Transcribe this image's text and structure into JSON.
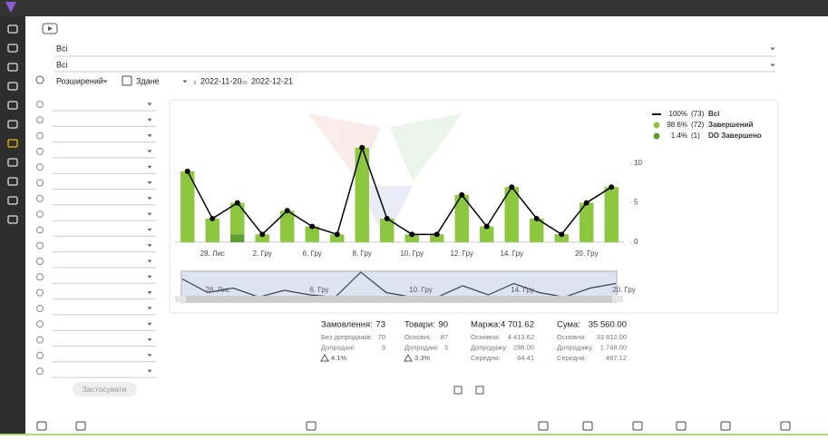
{
  "filters": {
    "row1": "Всі",
    "row2": "Всі",
    "mode": "Розширений",
    "status": "Здане",
    "from_label": "з",
    "from": "2022-11-20",
    "to_label": "по",
    "to": "2022-12-21"
  },
  "chart_data": {
    "type": "bar",
    "categories": [
      null,
      "28. Лис",
      null,
      "2. Гру",
      null,
      "6. Гру",
      null,
      "8. Гру",
      null,
      "10. Гру",
      null,
      "12. Гру",
      null,
      "14. Гру",
      null,
      null,
      "20. Гру",
      null
    ],
    "series": [
      {
        "name": "Всі",
        "type": "line",
        "color": "#000000",
        "percent": "100%",
        "count": "(73)",
        "values": [
          9,
          3,
          5,
          1,
          4,
          2,
          1,
          12,
          3,
          1,
          1,
          6,
          2,
          7,
          3,
          1,
          5,
          7
        ]
      },
      {
        "name": "Завершений",
        "color": "#8dc63f",
        "percent": "98.6%",
        "count": "(72)",
        "values": [
          9,
          3,
          4,
          1,
          4,
          2,
          1,
          12,
          3,
          1,
          1,
          6,
          2,
          7,
          3,
          1,
          5,
          7
        ]
      },
      {
        "name": "DO Завершено",
        "color": "#5e9e30",
        "percent": "1.4%",
        "count": "(1)",
        "values": [
          0,
          0,
          1,
          0,
          0,
          0,
          0,
          0,
          0,
          0,
          0,
          0,
          0,
          0,
          0,
          0,
          0,
          0
        ]
      }
    ],
    "ylim": [
      0,
      16
    ],
    "yticks": [
      0,
      5,
      10
    ],
    "grid": false,
    "navigator_labels": [
      "28. Лис",
      "6. Гру",
      "10. Гру",
      "14. Гру",
      "20. Гру"
    ]
  },
  "stats": [
    {
      "title": "Замовлення:",
      "value": "73",
      "rows": [
        [
          "Без допродажів:",
          "70"
        ],
        [
          "Допродані:",
          "3"
        ]
      ],
      "extra": "4.1%"
    },
    {
      "title": "Товари:",
      "value": "90",
      "rows": [
        [
          "Основні:",
          "87"
        ],
        [
          "Допродані:",
          "3"
        ]
      ],
      "extra": "3.3%"
    },
    {
      "title": "Маржа:",
      "value": "4 701.62",
      "rows": [
        [
          "Основна:",
          "4 413.62"
        ],
        [
          "Допродажу:",
          "288.00"
        ],
        [
          "Середня:",
          "64.41"
        ]
      ]
    },
    {
      "title": "Сума:",
      "value": "35 560.00",
      "rows": [
        [
          "Основна:",
          "33 812.00"
        ],
        [
          "Допродажу:",
          "1 748.00"
        ],
        [
          "Середня:",
          "487.12"
        ]
      ]
    }
  ],
  "apply_button": "Застосувати"
}
